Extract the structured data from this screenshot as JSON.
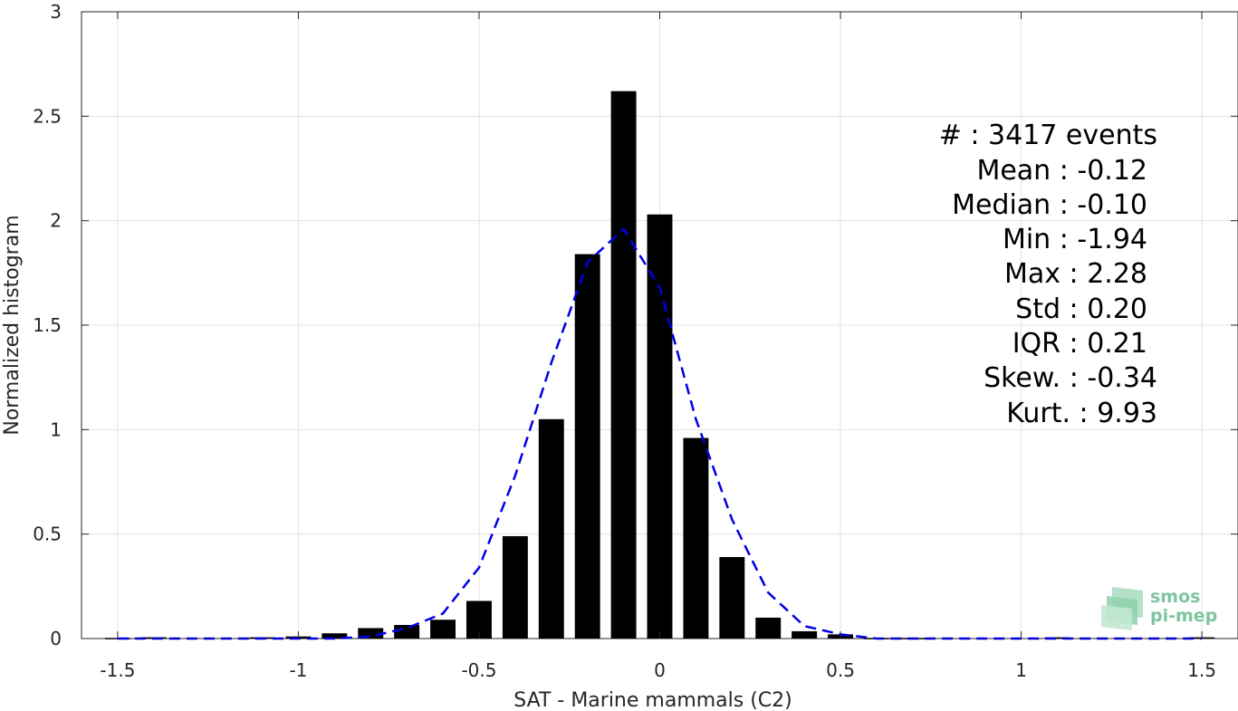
{
  "chart_data": {
    "type": "bar",
    "xlabel": "SAT - Marine mammals (C2)",
    "ylabel": "Normalized histogram",
    "xlim": [
      -1.6,
      1.6
    ],
    "ylim": [
      0,
      3
    ],
    "xticks": [
      -1.5,
      -1,
      -0.5,
      0,
      0.5,
      1,
      1.5
    ],
    "xtick_labels": [
      "-1.5",
      "-1",
      "-0.5",
      "0",
      "0.5",
      "1",
      "1.5"
    ],
    "yticks": [
      0,
      0.5,
      1,
      1.5,
      2,
      2.5,
      3
    ],
    "ytick_labels": [
      "0",
      "0.5",
      "1",
      "1.5",
      "2",
      "2.5",
      "3"
    ],
    "grid": true,
    "bar_width": 0.07,
    "bars": {
      "x": [
        -1.5,
        -1.4,
        -1.3,
        -1.2,
        -1.1,
        -1.0,
        -0.9,
        -0.8,
        -0.7,
        -0.6,
        -0.5,
        -0.4,
        -0.3,
        -0.2,
        -0.1,
        0.0,
        0.1,
        0.2,
        0.3,
        0.4,
        0.5,
        0.6,
        0.7,
        0.8,
        0.9,
        1.0,
        1.1,
        1.2,
        1.3,
        1.4,
        1.5
      ],
      "y": [
        0.003,
        0.006,
        0.0,
        0.0,
        0.006,
        0.01,
        0.025,
        0.05,
        0.065,
        0.09,
        0.18,
        0.49,
        1.05,
        1.84,
        2.62,
        2.03,
        0.96,
        0.39,
        0.1,
        0.035,
        0.02,
        0.003,
        0.003,
        0.0,
        0.0,
        0.0,
        0.006,
        0.0,
        0.0,
        0.0,
        0.006
      ],
      "color": "#000000"
    },
    "fit": {
      "style": "dashed",
      "color": "#0000e6",
      "x": [
        -1.5,
        -1.4,
        -1.3,
        -1.2,
        -1.1,
        -1.0,
        -0.9,
        -0.8,
        -0.7,
        -0.6,
        -0.5,
        -0.4,
        -0.3,
        -0.2,
        -0.1,
        0.0,
        0.1,
        0.2,
        0.3,
        0.4,
        0.5,
        0.6,
        0.7,
        0.8,
        0.9,
        1.0,
        1.1,
        1.2,
        1.3,
        1.4,
        1.5
      ],
      "y": [
        0.0,
        0.0,
        0.0,
        0.0,
        0.0,
        0.0,
        0.0,
        0.01,
        0.05,
        0.12,
        0.34,
        0.78,
        1.32,
        1.8,
        1.96,
        1.68,
        1.05,
        0.57,
        0.22,
        0.06,
        0.02,
        0.0,
        0.0,
        0.0,
        0.0,
        0.0,
        0.0,
        0.0,
        0.0,
        0.0,
        0.0
      ]
    },
    "stats": [
      "#  : 3417 events",
      "Mean : -0.12",
      "Median : -0.10",
      "Min : -1.94",
      "Max : 2.28",
      "Std : 0.20",
      "IQR : 0.21",
      "Skew. : -0.34",
      "Kurt. : 9.93"
    ]
  },
  "logo": {
    "line1": "smos",
    "line2": "pi-mep",
    "color": "#7fc4a0"
  }
}
